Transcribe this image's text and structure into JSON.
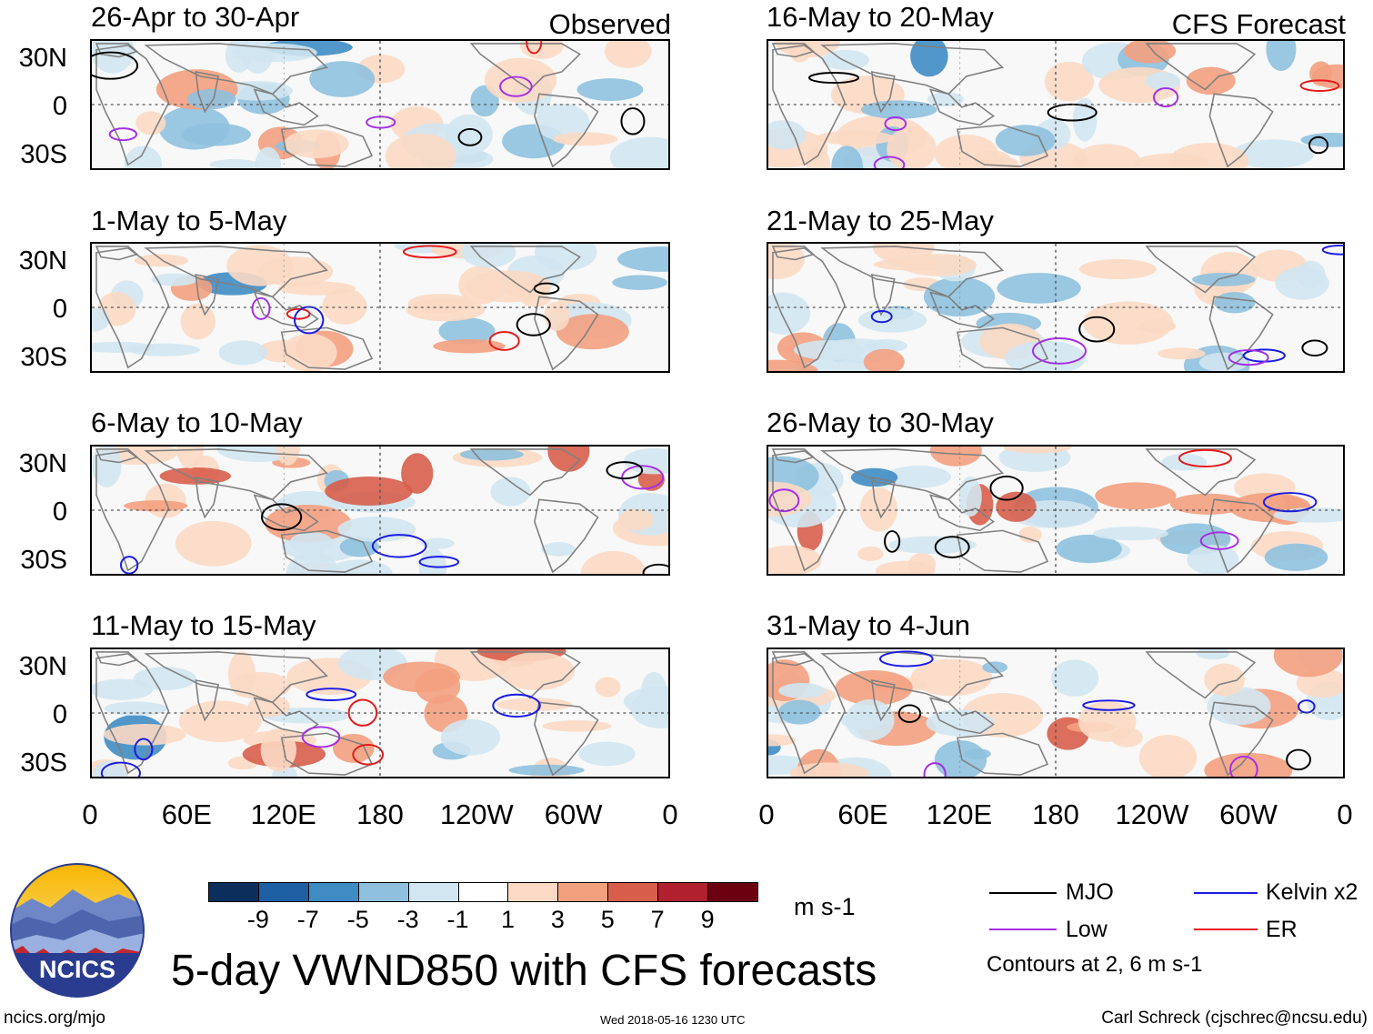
{
  "observed_label": "Observed",
  "forecast_label": "CFS Forecast",
  "panels_left": [
    {
      "title": "26-Apr to 30-Apr"
    },
    {
      "title": "1-May to 5-May"
    },
    {
      "title": "6-May to 10-May"
    },
    {
      "title": "11-May to 15-May"
    }
  ],
  "panels_right": [
    {
      "title": "16-May to 20-May"
    },
    {
      "title": "21-May to 25-May"
    },
    {
      "title": "26-May to 30-May"
    },
    {
      "title": "31-May to 4-Jun"
    }
  ],
  "lat_labels": [
    "30N",
    "0",
    "30S"
  ],
  "lon_labels": [
    "0",
    "60E",
    "120E",
    "180",
    "120W",
    "60W",
    "0"
  ],
  "colorbar": {
    "colors": [
      "#0b2e5c",
      "#1f5fa3",
      "#3f8cc4",
      "#8fc1de",
      "#d2e6f1",
      "#ffffff",
      "#fbd9c4",
      "#f3a07f",
      "#d75e4b",
      "#b0202e",
      "#6b0011"
    ],
    "ticks": [
      "-9",
      "-7",
      "-5",
      "-3",
      "-1",
      "1",
      "3",
      "5",
      "7",
      "9"
    ],
    "units": "m s-1"
  },
  "legend": {
    "mjo": "MJO",
    "low": "Low",
    "kelvin": "Kelvin x2",
    "er": "ER",
    "contours_note": "Contours at 2, 6 m s-1",
    "colors": {
      "mjo": "#000000",
      "low": "#a52ee6",
      "kelvin": "#1a1ae6",
      "er": "#e61a1a"
    }
  },
  "logo": {
    "text": "NCICS"
  },
  "main_title": "5-day VWND850 with CFS forecasts",
  "footer": {
    "url": "ncics.org/mjo",
    "timestamp": "Wed 2018-05-16 1230 UTC",
    "credit": "Carl Schreck (cjschrec@ncsu.edu)"
  }
}
